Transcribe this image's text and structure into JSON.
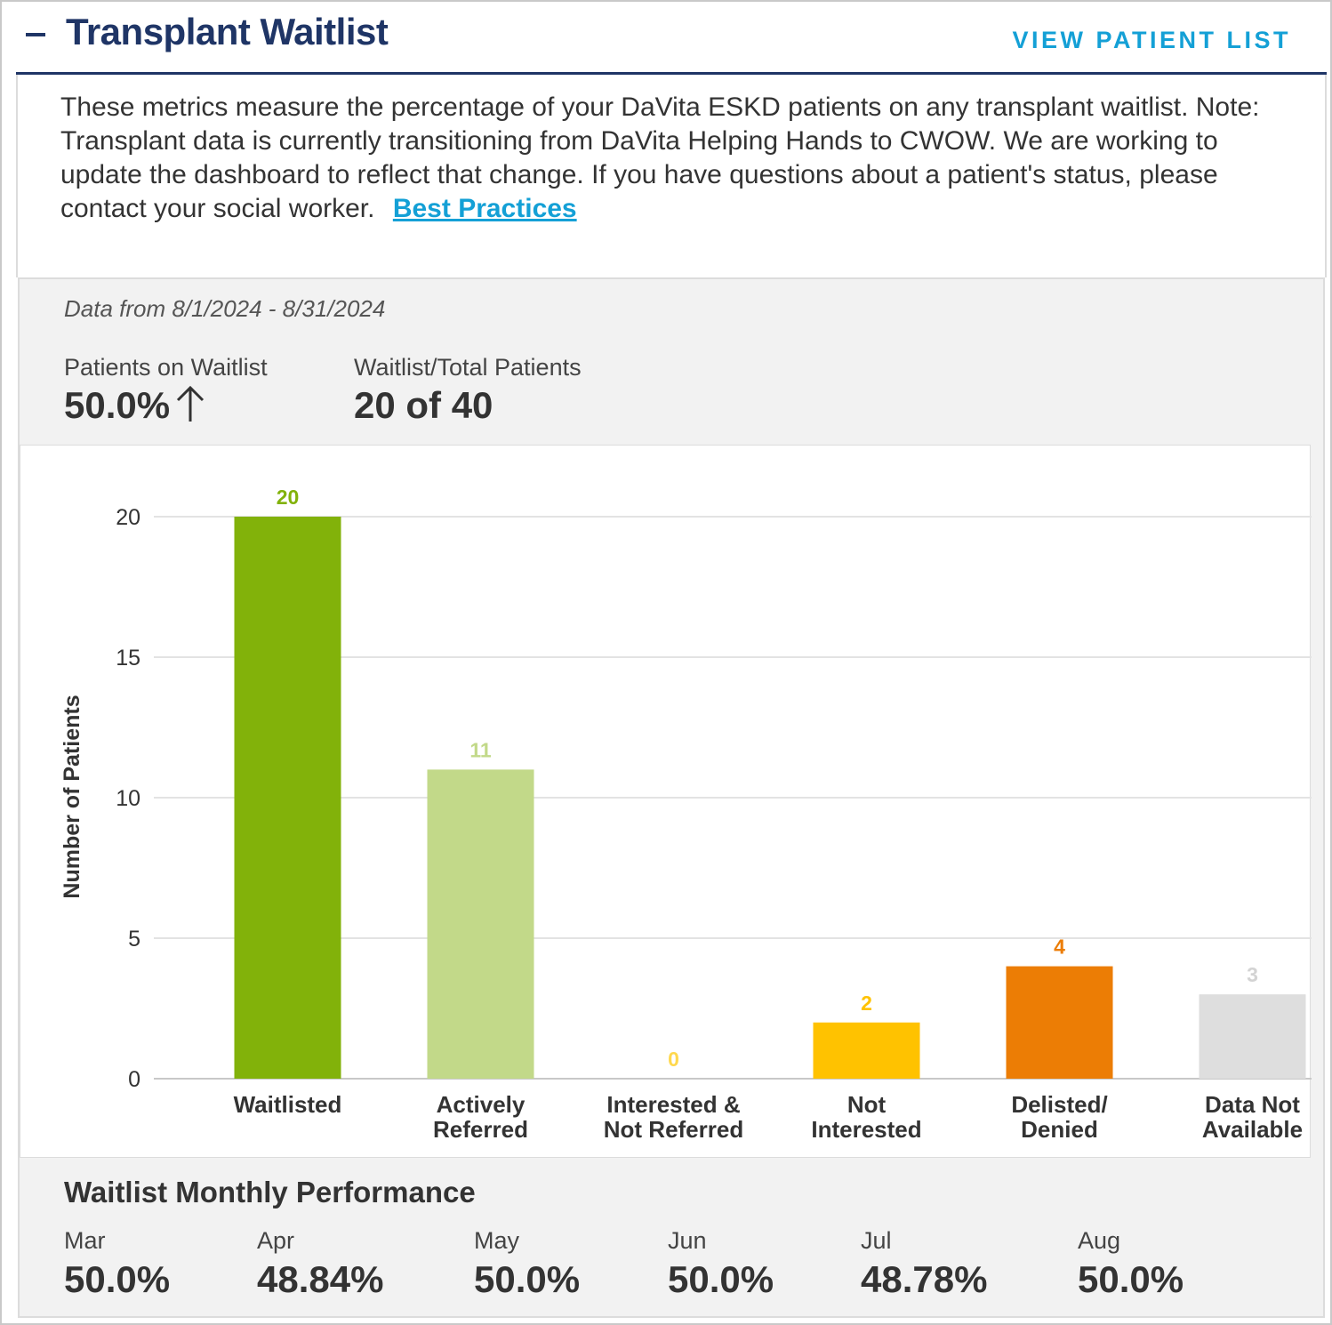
{
  "header": {
    "title": "Transplant Waitlist",
    "view_link": "VIEW PATIENT LIST"
  },
  "description": {
    "text": "These metrics measure the percentage of your DaVita ESKD patients on any transplant waitlist. Note: Transplant data is currently transitioning from DaVita Helping Hands to CWOW. We are working to update the dashboard to reflect that change. If you have questions about a patient's status, please contact your social worker.",
    "link": "Best Practices"
  },
  "date_range": "Data from 8/1/2024 - 8/31/2024",
  "stats": {
    "waitlist_label": "Patients on Waitlist",
    "waitlist_value": "50.0%",
    "waitlist_trend": "up",
    "ratio_label": "Waitlist/Total Patients",
    "ratio_value": "20 of 40"
  },
  "chart_data": {
    "type": "bar",
    "ylabel": "Number of Patients",
    "ylim": [
      0,
      20
    ],
    "yticks": [
      0,
      5,
      10,
      15,
      20
    ],
    "grid": true,
    "categories": [
      [
        "Waitlisted"
      ],
      [
        "Actively",
        "Referred"
      ],
      [
        "Interested &",
        "Not Referred"
      ],
      [
        "Not",
        "Interested"
      ],
      [
        "Delisted/",
        "Denied"
      ],
      [
        "Data Not",
        "Available"
      ]
    ],
    "values": [
      20,
      11,
      0,
      2,
      4,
      3
    ],
    "colors": [
      "#82b20a",
      "#c2d989",
      "#ffc200",
      "#ffc200",
      "#ec7d05",
      "#dedede"
    ],
    "label_colors": [
      "#82b20a",
      "#c2d989",
      "#ffd84d",
      "#ffc200",
      "#ec7d05",
      "#d3d3d3"
    ]
  },
  "monthly": {
    "title": "Waitlist Monthly Performance",
    "months": [
      {
        "label": "Mar",
        "value": "50.0%"
      },
      {
        "label": "Apr",
        "value": "48.84%"
      },
      {
        "label": "May",
        "value": "50.0%"
      },
      {
        "label": "Jun",
        "value": "50.0%"
      },
      {
        "label": "Jul",
        "value": "48.78%"
      },
      {
        "label": "Aug",
        "value": "50.0%"
      }
    ]
  }
}
